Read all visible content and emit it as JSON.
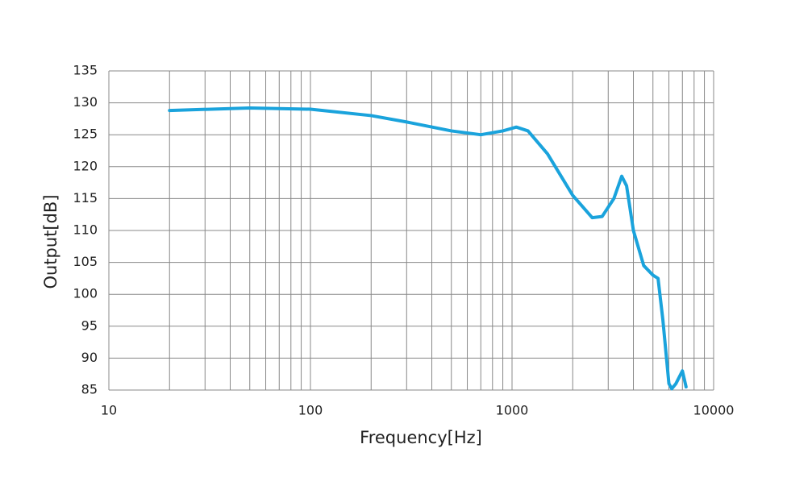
{
  "chart_data": {
    "type": "line",
    "x_label": "Frequency[Hz]",
    "y_label": "Output[dB]",
    "x_scale": "log",
    "xlim": [
      10,
      10000
    ],
    "xticks": [
      10,
      100,
      1000,
      10000
    ],
    "x_minor_grid": [
      20,
      30,
      40,
      50,
      60,
      70,
      80,
      90,
      200,
      300,
      400,
      500,
      600,
      700,
      800,
      900,
      2000,
      3000,
      4000,
      5000,
      6000,
      7000,
      8000,
      9000
    ],
    "ylim": [
      85,
      135
    ],
    "yticks": [
      85,
      90,
      95,
      100,
      105,
      110,
      115,
      120,
      125,
      130,
      135
    ],
    "grid": true,
    "series": [
      {
        "color": "#1aa3dc",
        "x": [
          20,
          50,
          100,
          200,
          300,
          500,
          700,
          900,
          1050,
          1200,
          1500,
          2000,
          2500,
          2800,
          3200,
          3500,
          3700,
          4000,
          4500,
          5000,
          5300,
          5600,
          6000,
          6200,
          6500,
          7000,
          7300
        ],
        "values": [
          128.8,
          129.2,
          129.0,
          128.0,
          127.0,
          125.6,
          125.0,
          125.6,
          126.2,
          125.6,
          122.0,
          115.5,
          112.0,
          112.2,
          115.0,
          118.5,
          117.0,
          110.0,
          104.5,
          103.0,
          102.5,
          96.0,
          86.0,
          85.2,
          86.0,
          88.0,
          85.5
        ]
      }
    ]
  }
}
